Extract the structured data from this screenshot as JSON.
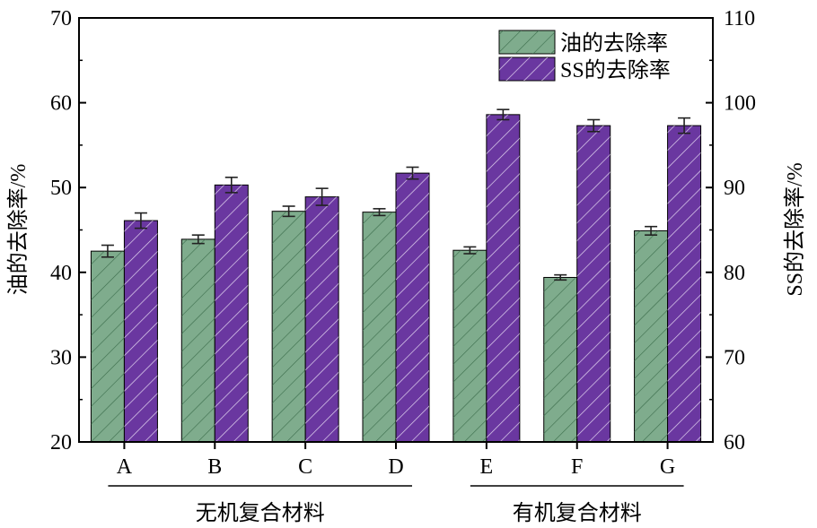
{
  "chart_data": {
    "type": "bar",
    "categories": [
      "A",
      "B",
      "C",
      "D",
      "E",
      "F",
      "G"
    ],
    "series": [
      {
        "name": "油的去除率",
        "axis": "left",
        "color": "#7fac8d",
        "values": [
          42.5,
          43.9,
          47.2,
          47.1,
          42.6,
          39.4,
          44.9
        ],
        "errors": [
          0.7,
          0.5,
          0.6,
          0.4,
          0.4,
          0.3,
          0.5
        ]
      },
      {
        "name": "SS的去除率",
        "axis": "right",
        "color": "#6a37a0",
        "values": [
          86.1,
          90.3,
          88.9,
          91.7,
          98.6,
          97.3,
          97.3
        ],
        "errors": [
          0.9,
          0.9,
          1.0,
          0.7,
          0.6,
          0.7,
          0.9
        ]
      }
    ],
    "y_left": {
      "label": "油的去除率/%",
      "lim": [
        20,
        70
      ],
      "ticks": [
        20,
        30,
        40,
        50,
        60,
        70
      ]
    },
    "y_right": {
      "label": "SS的去除率/%",
      "lim": [
        60,
        110
      ],
      "ticks": [
        60,
        70,
        80,
        90,
        100,
        110
      ]
    },
    "groups": [
      {
        "label": "无机复合材料",
        "categories": [
          "A",
          "B",
          "C",
          "D"
        ]
      },
      {
        "label": "有机复合材料",
        "categories": [
          "E",
          "F",
          "G"
        ]
      }
    ],
    "legend": "top-right",
    "grid": false
  }
}
